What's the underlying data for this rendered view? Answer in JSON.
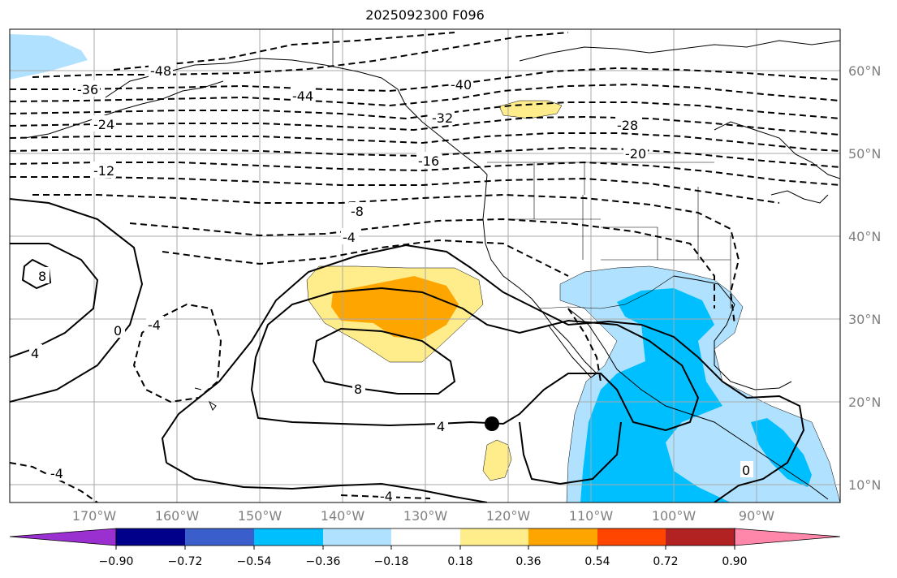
{
  "title": "2025092300 F096",
  "latitude_labels": [
    "60°N",
    "50°N",
    "40°N",
    "30°N",
    "20°N",
    "10°N"
  ],
  "longitude_labels": [
    "170°W",
    "160°W",
    "150°W",
    "140°W",
    "130°W",
    "120°W",
    "110°W",
    "100°W",
    "90°W"
  ],
  "contour_labels": [
    "-48",
    "-44",
    "-40",
    "-36",
    "-32",
    "-28",
    "-24",
    "-20",
    "-16",
    "-12",
    "-8",
    "-4",
    "0",
    "4",
    "8",
    "8",
    "4",
    "-4",
    "-4",
    "-4",
    "0",
    "4",
    "4",
    "-4",
    "-4"
  ],
  "colorbar": {
    "ticks": [
      "−0.90",
      "−0.72",
      "−0.54",
      "−0.36",
      "−0.18",
      "0.18",
      "0.36",
      "0.54",
      "0.72",
      "0.90"
    ],
    "colors": [
      "#9b30d0",
      "#00008b",
      "#3a5fcd",
      "#00bfff",
      "#b0e2ff",
      "#ffffff",
      "#ffec8b",
      "#ffa500",
      "#ff4500",
      "#b22222",
      "#ff88aa"
    ]
  },
  "colors": {
    "contour": "#000000",
    "coast": "#000000",
    "grid": "#a9a9a9",
    "label": "#808080",
    "marker": "#000000"
  },
  "marker": {
    "name": "storm-center-marker",
    "lon": -122,
    "lat": 17.5
  }
}
